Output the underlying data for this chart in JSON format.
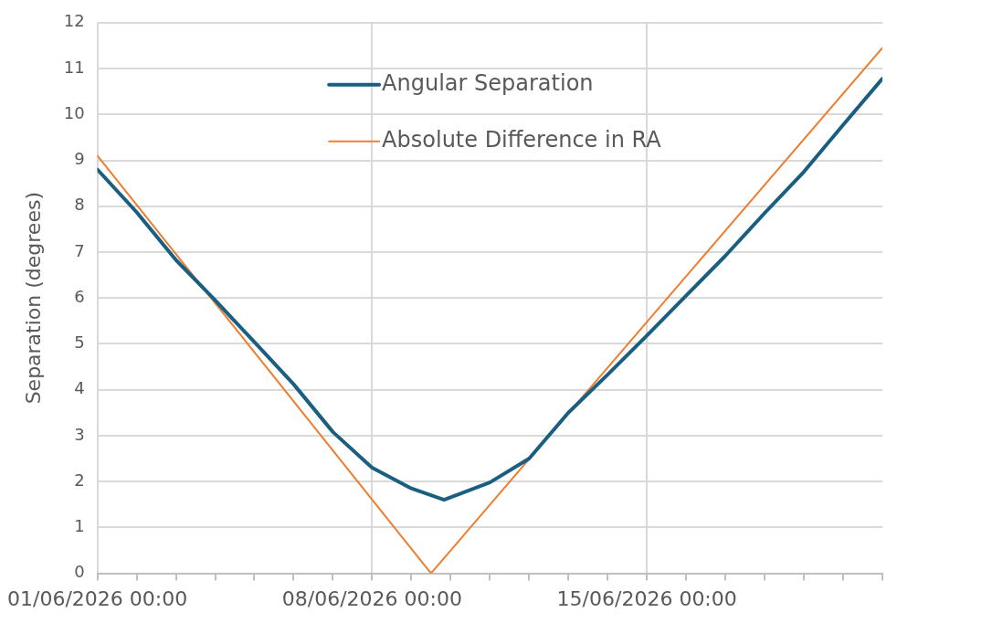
{
  "chart_data": {
    "type": "line",
    "ylabel": "Separation (degrees)",
    "xlim": [
      "2026-06-01",
      "2026-06-21"
    ],
    "xticks": [
      {
        "value": "2026-06-01",
        "label": "01/06/2026 00:00"
      },
      {
        "value": "2026-06-02",
        "label": null
      },
      {
        "value": "2026-06-03",
        "label": null
      },
      {
        "value": "2026-06-04",
        "label": null
      },
      {
        "value": "2026-06-05",
        "label": null
      },
      {
        "value": "2026-06-06",
        "label": null
      },
      {
        "value": "2026-06-07",
        "label": null
      },
      {
        "value": "2026-06-08",
        "label": "08/06/2026 00:00"
      },
      {
        "value": "2026-06-09",
        "label": null
      },
      {
        "value": "2026-06-10",
        "label": null
      },
      {
        "value": "2026-06-11",
        "label": null
      },
      {
        "value": "2026-06-12",
        "label": null
      },
      {
        "value": "2026-06-13",
        "label": null
      },
      {
        "value": "2026-06-14",
        "label": null
      },
      {
        "value": "2026-06-15",
        "label": "15/06/2026 00:00"
      },
      {
        "value": "2026-06-16",
        "label": null
      },
      {
        "value": "2026-06-17",
        "label": null
      },
      {
        "value": "2026-06-18",
        "label": null
      },
      {
        "value": "2026-06-19",
        "label": null
      },
      {
        "value": "2026-06-20",
        "label": null
      },
      {
        "value": "2026-06-21",
        "label": null
      }
    ],
    "ylim": [
      0,
      12
    ],
    "yticks": [
      0,
      1,
      2,
      3,
      4,
      5,
      6,
      7,
      8,
      9,
      10,
      11,
      12
    ],
    "grid": true,
    "legend": "top",
    "marker": "none",
    "line_style": "solid",
    "series": [
      {
        "name": "Angular Separation",
        "color": "#1a5f82",
        "x": [
          "2026-06-01",
          "2026-06-02",
          "2026-06-03",
          "2026-06-04",
          "2026-06-05",
          "2026-06-06",
          "2026-06-07",
          "2026-06-08",
          "2026-06-09",
          "2026-06-09T20:00",
          "2026-06-11",
          "2026-06-12",
          "2026-06-13",
          "2026-06-14",
          "2026-06-15",
          "2026-06-16",
          "2026-06-17",
          "2026-06-18",
          "2026-06-19",
          "2026-06-20",
          "2026-06-21"
        ],
        "values": [
          8.8,
          7.87,
          6.83,
          5.95,
          5.04,
          4.12,
          3.08,
          2.3,
          1.85,
          1.6,
          1.98,
          2.5,
          3.5,
          4.33,
          5.18,
          6.05,
          6.92,
          7.85,
          8.75,
          9.77,
          10.78
        ]
      },
      {
        "name": "Absolute Difference in RA",
        "color": "#ed7d31",
        "x": [
          "2026-06-01",
          "2026-06-09T12:00",
          "2026-06-21"
        ],
        "values": [
          9.1,
          0,
          11.45
        ]
      }
    ]
  }
}
